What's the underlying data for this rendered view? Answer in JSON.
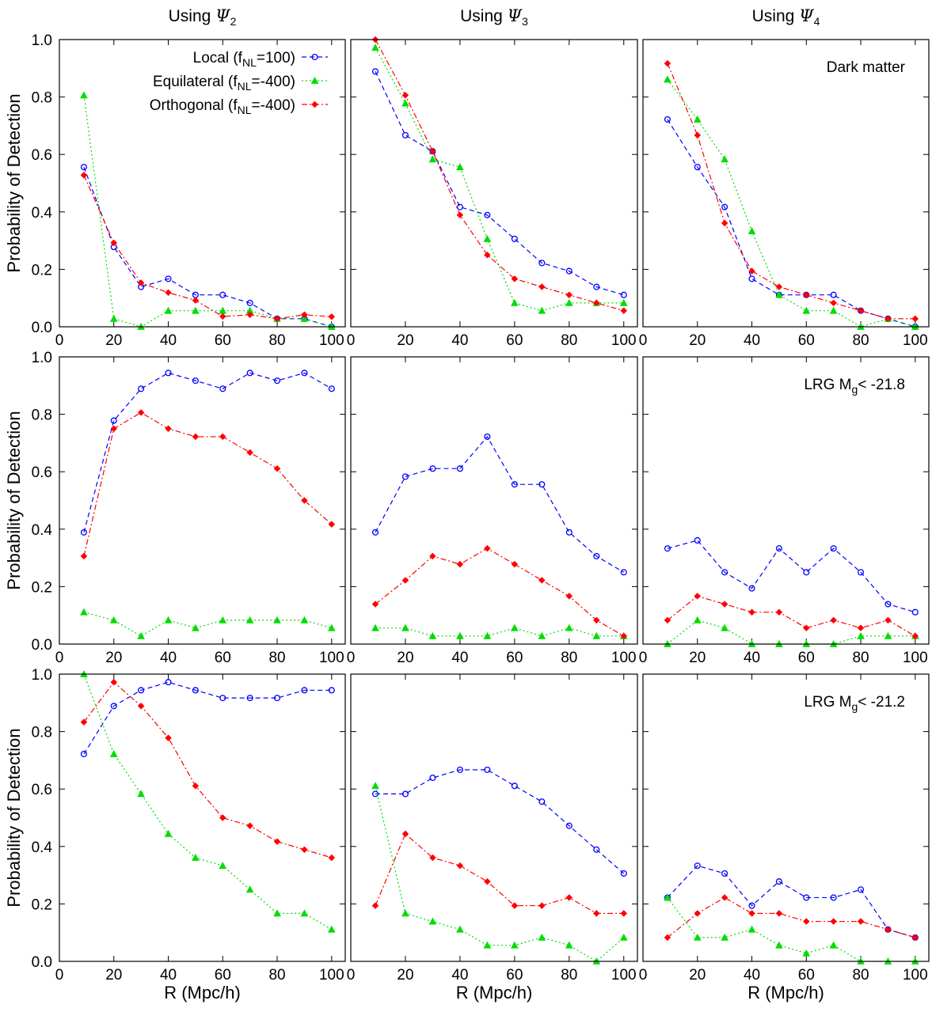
{
  "figure": {
    "column_titles": [
      {
        "prefix": "Using ",
        "symbol": "Ψ",
        "sub": "2"
      },
      {
        "prefix": "Using ",
        "symbol": "Ψ",
        "sub": "3"
      },
      {
        "prefix": "Using ",
        "symbol": "Ψ",
        "sub": "4"
      }
    ],
    "row_labels": [
      {
        "text": "Dark matter",
        "sub": "",
        "suffix": ""
      },
      {
        "text": "LRG M",
        "sub": "g",
        "suffix": "< -21.8"
      },
      {
        "text": "LRG M",
        "sub": "g",
        "suffix": "< -21.2"
      }
    ],
    "ylabel": "Probability of Detection",
    "xlabel": "R (Mpc/h)",
    "x_ticks": [
      0,
      20,
      40,
      60,
      80,
      100
    ],
    "y_ticks": [
      "0.0",
      "0.2",
      "0.4",
      "0.6",
      "0.8",
      "1.0"
    ],
    "legend": [
      {
        "name": "Local (f",
        "sub": "NL",
        "tail": "=100)",
        "color": "#0000ff",
        "marker": "circle",
        "dash": "dashed"
      },
      {
        "name": "Equilateral (f",
        "sub": "NL",
        "tail": "=-400)",
        "color": "#00dd00",
        "marker": "triangle",
        "dash": "dotted"
      },
      {
        "name": "Orthogonal (f",
        "sub": "NL",
        "tail": "=-400)",
        "color": "#ff0000",
        "marker": "diamond",
        "dash": "dashdot"
      }
    ]
  },
  "chart_data": [
    {
      "type": "line",
      "row": 0,
      "col": 0,
      "xlim": [
        0,
        105
      ],
      "ylim": [
        0,
        1
      ],
      "x": [
        9,
        20,
        30,
        40,
        50,
        60,
        70,
        80,
        90,
        100
      ],
      "series": [
        {
          "name": "Local (fNL=100)",
          "values": [
            0.556,
            0.278,
            0.139,
            0.167,
            0.111,
            0.111,
            0.083,
            0.028,
            0.028,
            0.0
          ]
        },
        {
          "name": "Equilateral (fNL=-400)",
          "values": [
            0.806,
            0.028,
            0.0,
            0.056,
            0.056,
            0.056,
            0.056,
            0.028,
            0.028,
            0.0
          ]
        },
        {
          "name": "Orthogonal (fNL=-400)",
          "values": [
            0.528,
            0.292,
            0.153,
            0.119,
            0.092,
            0.036,
            0.042,
            0.028,
            0.042,
            0.035
          ]
        }
      ]
    },
    {
      "type": "line",
      "row": 0,
      "col": 1,
      "xlim": [
        0,
        105
      ],
      "ylim": [
        0,
        1
      ],
      "x": [
        9,
        20,
        30,
        40,
        50,
        60,
        70,
        80,
        90,
        100
      ],
      "series": [
        {
          "name": "Local (fNL=100)",
          "values": [
            0.889,
            0.667,
            0.611,
            0.417,
            0.389,
            0.306,
            0.222,
            0.194,
            0.139,
            0.111
          ]
        },
        {
          "name": "Equilateral (fNL=-400)",
          "values": [
            0.972,
            0.778,
            0.583,
            0.556,
            0.306,
            0.083,
            0.056,
            0.083,
            0.083,
            0.083
          ]
        },
        {
          "name": "Orthogonal (fNL=-400)",
          "values": [
            1.0,
            0.806,
            0.611,
            0.389,
            0.25,
            0.167,
            0.139,
            0.111,
            0.083,
            0.056
          ]
        }
      ]
    },
    {
      "type": "line",
      "row": 0,
      "col": 2,
      "xlim": [
        0,
        105
      ],
      "ylim": [
        0,
        1
      ],
      "x": [
        9,
        20,
        30,
        40,
        50,
        60,
        70,
        80,
        90,
        100
      ],
      "series": [
        {
          "name": "Local (fNL=100)",
          "values": [
            0.722,
            0.556,
            0.417,
            0.167,
            0.111,
            0.111,
            0.111,
            0.056,
            0.028,
            0.0
          ]
        },
        {
          "name": "Equilateral (fNL=-400)",
          "values": [
            0.861,
            0.722,
            0.583,
            0.333,
            0.111,
            0.056,
            0.056,
            0.0,
            0.028,
            0.0
          ]
        },
        {
          "name": "Orthogonal (fNL=-400)",
          "values": [
            0.917,
            0.667,
            0.361,
            0.194,
            0.139,
            0.111,
            0.083,
            0.056,
            0.028,
            0.028
          ]
        }
      ]
    },
    {
      "type": "line",
      "row": 1,
      "col": 0,
      "xlim": [
        0,
        105
      ],
      "ylim": [
        0,
        1
      ],
      "x": [
        9,
        20,
        30,
        40,
        50,
        60,
        70,
        80,
        90,
        100
      ],
      "series": [
        {
          "name": "Local (fNL=100)",
          "values": [
            0.389,
            0.778,
            0.889,
            0.944,
            0.917,
            0.889,
            0.944,
            0.917,
            0.944,
            0.889
          ]
        },
        {
          "name": "Equilateral (fNL=-400)",
          "values": [
            0.111,
            0.083,
            0.028,
            0.083,
            0.056,
            0.083,
            0.083,
            0.083,
            0.083,
            0.056
          ]
        },
        {
          "name": "Orthogonal (fNL=-400)",
          "values": [
            0.306,
            0.75,
            0.806,
            0.75,
            0.722,
            0.722,
            0.667,
            0.611,
            0.5,
            0.417
          ]
        }
      ]
    },
    {
      "type": "line",
      "row": 1,
      "col": 1,
      "xlim": [
        0,
        105
      ],
      "ylim": [
        0,
        1
      ],
      "x": [
        9,
        20,
        30,
        40,
        50,
        60,
        70,
        80,
        90,
        100
      ],
      "series": [
        {
          "name": "Local (fNL=100)",
          "values": [
            0.389,
            0.583,
            0.611,
            0.611,
            0.722,
            0.556,
            0.556,
            0.389,
            0.306,
            0.25
          ]
        },
        {
          "name": "Equilateral (fNL=-400)",
          "values": [
            0.056,
            0.056,
            0.028,
            0.028,
            0.028,
            0.056,
            0.028,
            0.056,
            0.028,
            0.028
          ]
        },
        {
          "name": "Orthogonal (fNL=-400)",
          "values": [
            0.139,
            0.222,
            0.306,
            0.278,
            0.333,
            0.278,
            0.222,
            0.167,
            0.083,
            0.028
          ]
        }
      ]
    },
    {
      "type": "line",
      "row": 1,
      "col": 2,
      "xlim": [
        0,
        105
      ],
      "ylim": [
        0,
        1
      ],
      "x": [
        9,
        20,
        30,
        40,
        50,
        60,
        70,
        80,
        90,
        100
      ],
      "series": [
        {
          "name": "Local (fNL=100)",
          "values": [
            0.333,
            0.361,
            0.25,
            0.194,
            0.333,
            0.25,
            0.333,
            0.25,
            0.139,
            0.111
          ]
        },
        {
          "name": "Equilateral (fNL=-400)",
          "values": [
            0.0,
            0.083,
            0.056,
            0.0,
            0.0,
            0.0,
            0.0,
            0.028,
            0.028,
            0.028
          ]
        },
        {
          "name": "Orthogonal (fNL=-400)",
          "values": [
            0.083,
            0.167,
            0.139,
            0.111,
            0.111,
            0.056,
            0.083,
            0.056,
            0.083,
            0.028
          ]
        }
      ]
    },
    {
      "type": "line",
      "row": 2,
      "col": 0,
      "xlim": [
        0,
        105
      ],
      "ylim": [
        0,
        1
      ],
      "x": [
        9,
        20,
        30,
        40,
        50,
        60,
        70,
        80,
        90,
        100
      ],
      "series": [
        {
          "name": "Local (fNL=100)",
          "values": [
            0.722,
            0.889,
            0.944,
            0.972,
            0.944,
            0.917,
            0.917,
            0.917,
            0.944,
            0.944
          ]
        },
        {
          "name": "Equilateral (fNL=-400)",
          "values": [
            1.0,
            0.722,
            0.583,
            0.444,
            0.361,
            0.333,
            0.25,
            0.167,
            0.167,
            0.111
          ]
        },
        {
          "name": "Orthogonal (fNL=-400)",
          "values": [
            0.833,
            0.972,
            0.889,
            0.778,
            0.611,
            0.5,
            0.472,
            0.417,
            0.389,
            0.361
          ]
        }
      ]
    },
    {
      "type": "line",
      "row": 2,
      "col": 1,
      "xlim": [
        0,
        105
      ],
      "ylim": [
        0,
        1
      ],
      "x": [
        9,
        20,
        30,
        40,
        50,
        60,
        70,
        80,
        90,
        100
      ],
      "series": [
        {
          "name": "Local (fNL=100)",
          "values": [
            0.583,
            0.583,
            0.639,
            0.667,
            0.667,
            0.611,
            0.556,
            0.472,
            0.389,
            0.306
          ]
        },
        {
          "name": "Equilateral (fNL=-400)",
          "values": [
            0.611,
            0.167,
            0.139,
            0.111,
            0.056,
            0.056,
            0.083,
            0.056,
            0.0,
            0.083
          ]
        },
        {
          "name": "Orthogonal (fNL=-400)",
          "values": [
            0.194,
            0.444,
            0.361,
            0.333,
            0.278,
            0.194,
            0.194,
            0.222,
            0.167,
            0.167
          ]
        }
      ]
    },
    {
      "type": "line",
      "row": 2,
      "col": 2,
      "xlim": [
        0,
        105
      ],
      "ylim": [
        0,
        1
      ],
      "x": [
        9,
        20,
        30,
        40,
        50,
        60,
        70,
        80,
        90,
        100
      ],
      "series": [
        {
          "name": "Local (fNL=100)",
          "values": [
            0.222,
            0.333,
            0.306,
            0.194,
            0.278,
            0.222,
            0.222,
            0.25,
            0.111,
            0.083
          ]
        },
        {
          "name": "Equilateral (fNL=-400)",
          "values": [
            0.222,
            0.083,
            0.083,
            0.111,
            0.056,
            0.028,
            0.056,
            0.0,
            0.0,
            0.0
          ]
        },
        {
          "name": "Orthogonal (fNL=-400)",
          "values": [
            0.083,
            0.167,
            0.222,
            0.167,
            0.167,
            0.139,
            0.139,
            0.139,
            0.111,
            0.083
          ]
        }
      ]
    }
  ]
}
